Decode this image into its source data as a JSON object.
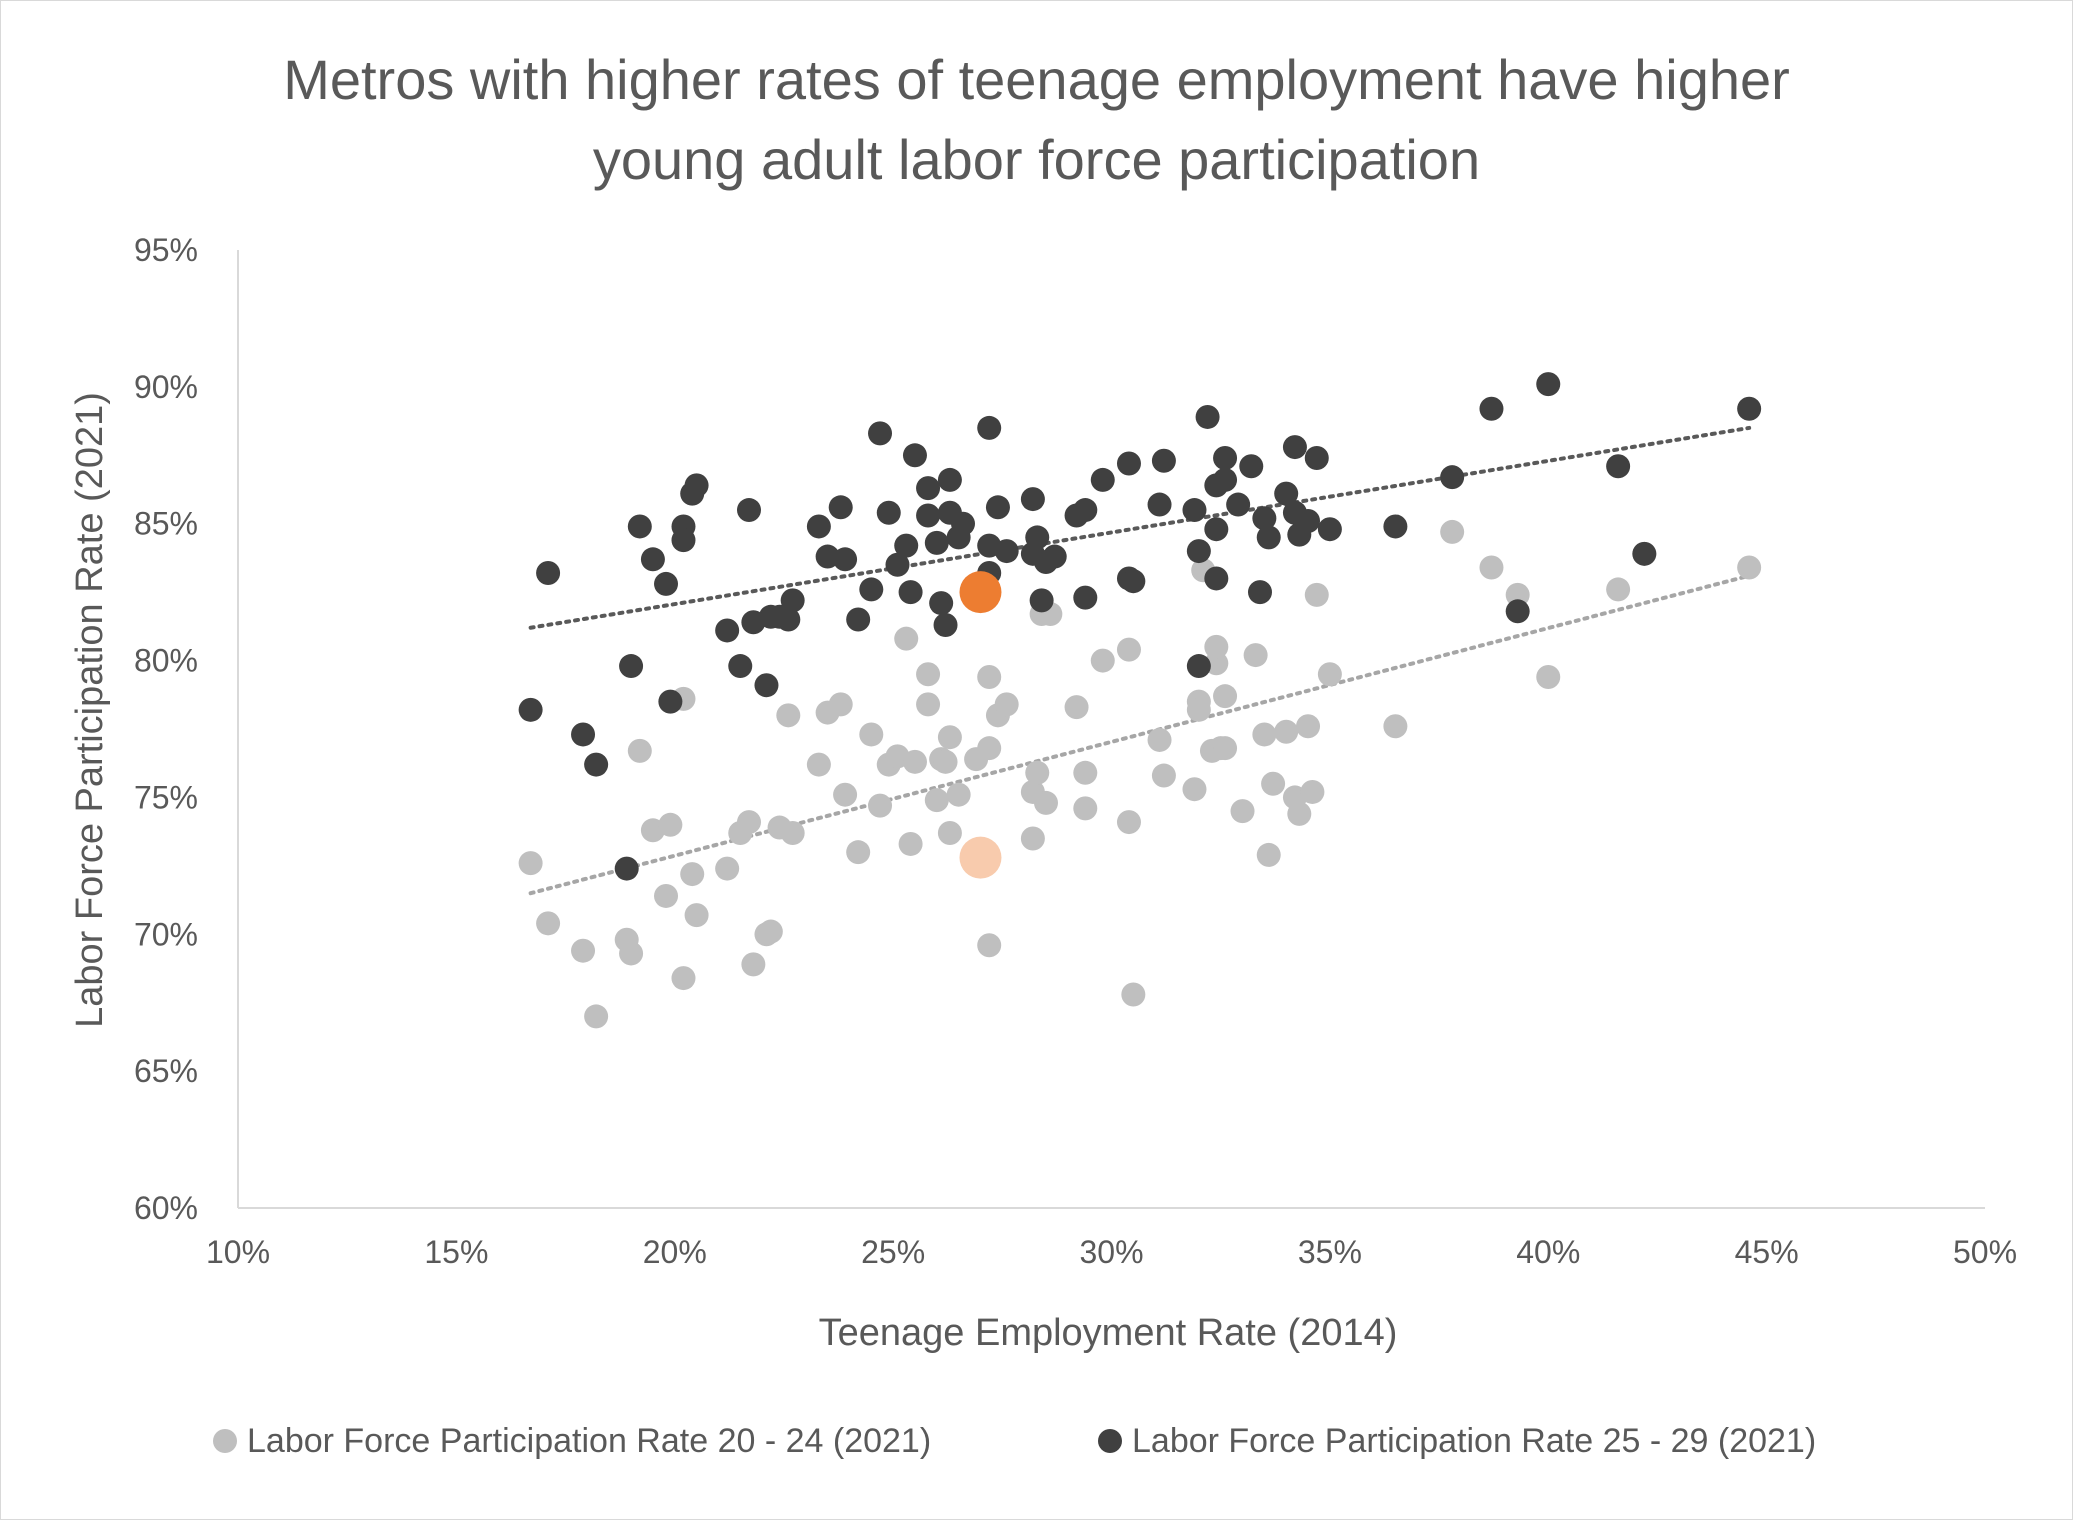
{
  "chart_data": {
    "type": "scatter",
    "title_line1": "Metros with higher rates of teenage employment have higher",
    "title_line2": "young adult labor force participation",
    "xlabel": "Teenage Employment Rate (2014)",
    "ylabel": "Labor Force Participation Rate (2021)",
    "xlim": [
      10,
      50
    ],
    "ylim": [
      60,
      95
    ],
    "x_ticks": [
      "10%",
      "15%",
      "20%",
      "25%",
      "30%",
      "35%",
      "40%",
      "45%",
      "50%"
    ],
    "y_ticks": [
      "60%",
      "65%",
      "70%",
      "75%",
      "80%",
      "85%",
      "90%",
      "95%"
    ],
    "grid": false,
    "legend_position": "bottom",
    "trendlines": true,
    "series": [
      {
        "name": "Labor Force Participation Rate 20 - 24 (2021)",
        "color": "#bfbfbf",
        "trend": [
          [
            16.7,
            71.5
          ],
          [
            44.6,
            83.1
          ]
        ],
        "highlight": {
          "x": 27.0,
          "y": 72.8,
          "color": "#f8cbad"
        },
        "points": [
          [
            16.7,
            72.6
          ],
          [
            17.1,
            70.4
          ],
          [
            17.9,
            69.4
          ],
          [
            18.2,
            67.0
          ],
          [
            18.9,
            69.8
          ],
          [
            19.0,
            69.3
          ],
          [
            19.2,
            76.7
          ],
          [
            19.5,
            73.8
          ],
          [
            19.8,
            71.4
          ],
          [
            19.9,
            74.0
          ],
          [
            20.2,
            68.4
          ],
          [
            20.2,
            78.6
          ],
          [
            20.4,
            72.2
          ],
          [
            20.5,
            70.7
          ],
          [
            21.2,
            72.4
          ],
          [
            21.5,
            73.7
          ],
          [
            21.7,
            74.1
          ],
          [
            21.8,
            68.9
          ],
          [
            22.1,
            70.0
          ],
          [
            22.2,
            70.1
          ],
          [
            22.4,
            73.9
          ],
          [
            22.6,
            78.0
          ],
          [
            22.7,
            73.7
          ],
          [
            23.3,
            76.2
          ],
          [
            23.5,
            78.1
          ],
          [
            23.8,
            78.4
          ],
          [
            23.9,
            75.1
          ],
          [
            24.2,
            73.0
          ],
          [
            24.5,
            77.3
          ],
          [
            24.7,
            74.7
          ],
          [
            24.9,
            76.2
          ],
          [
            25.1,
            76.5
          ],
          [
            25.3,
            80.8
          ],
          [
            25.4,
            73.3
          ],
          [
            25.5,
            76.3
          ],
          [
            25.8,
            79.5
          ],
          [
            25.8,
            78.4
          ],
          [
            26.0,
            74.9
          ],
          [
            26.1,
            76.4
          ],
          [
            26.2,
            76.3
          ],
          [
            26.3,
            77.2
          ],
          [
            26.3,
            73.7
          ],
          [
            26.5,
            75.1
          ],
          [
            26.9,
            76.4
          ],
          [
            27.2,
            79.4
          ],
          [
            27.2,
            76.8
          ],
          [
            27.4,
            78.0
          ],
          [
            27.6,
            78.4
          ],
          [
            27.2,
            69.6
          ],
          [
            28.2,
            75.2
          ],
          [
            28.3,
            75.9
          ],
          [
            28.5,
            74.8
          ],
          [
            28.2,
            73.5
          ],
          [
            28.4,
            81.7
          ],
          [
            28.6,
            81.7
          ],
          [
            29.2,
            78.3
          ],
          [
            29.4,
            75.9
          ],
          [
            29.4,
            74.6
          ],
          [
            29.8,
            80.0
          ],
          [
            30.4,
            80.4
          ],
          [
            30.4,
            74.1
          ],
          [
            30.5,
            67.8
          ],
          [
            31.1,
            77.1
          ],
          [
            31.2,
            75.8
          ],
          [
            31.9,
            75.3
          ],
          [
            32.0,
            78.5
          ],
          [
            32.0,
            78.2
          ],
          [
            32.1,
            83.3
          ],
          [
            32.3,
            76.7
          ],
          [
            32.4,
            79.9
          ],
          [
            32.4,
            80.5
          ],
          [
            32.5,
            76.8
          ],
          [
            32.6,
            78.7
          ],
          [
            32.6,
            76.8
          ],
          [
            33.0,
            74.5
          ],
          [
            33.3,
            80.2
          ],
          [
            33.5,
            77.3
          ],
          [
            33.6,
            72.9
          ],
          [
            33.7,
            75.5
          ],
          [
            34.0,
            77.4
          ],
          [
            34.2,
            75.0
          ],
          [
            34.3,
            74.4
          ],
          [
            34.5,
            77.6
          ],
          [
            34.6,
            75.2
          ],
          [
            34.7,
            82.4
          ],
          [
            35.0,
            79.5
          ],
          [
            36.5,
            77.6
          ],
          [
            37.8,
            84.7
          ],
          [
            38.7,
            83.4
          ],
          [
            39.3,
            82.4
          ],
          [
            40.0,
            79.4
          ],
          [
            41.6,
            82.6
          ],
          [
            42.2,
            83.9
          ],
          [
            44.6,
            83.4
          ]
        ]
      },
      {
        "name": "Labor Force Participation Rate 25 - 29 (2021)",
        "color": "#404040",
        "trend": [
          [
            16.7,
            81.2
          ],
          [
            44.6,
            88.5
          ]
        ],
        "highlight": {
          "x": 27.0,
          "y": 82.5,
          "color": "#ed7d31"
        },
        "points": [
          [
            16.7,
            78.2
          ],
          [
            17.1,
            83.2
          ],
          [
            17.9,
            77.3
          ],
          [
            18.2,
            76.2
          ],
          [
            18.9,
            72.4
          ],
          [
            19.0,
            79.8
          ],
          [
            19.2,
            84.9
          ],
          [
            19.5,
            83.7
          ],
          [
            19.8,
            82.8
          ],
          [
            19.9,
            78.5
          ],
          [
            20.2,
            84.9
          ],
          [
            20.2,
            84.4
          ],
          [
            20.4,
            86.1
          ],
          [
            20.5,
            86.4
          ],
          [
            21.2,
            81.1
          ],
          [
            21.5,
            79.8
          ],
          [
            21.7,
            85.5
          ],
          [
            21.8,
            81.4
          ],
          [
            22.1,
            79.1
          ],
          [
            22.2,
            81.6
          ],
          [
            22.4,
            81.6
          ],
          [
            22.6,
            81.5
          ],
          [
            22.7,
            82.2
          ],
          [
            23.3,
            84.9
          ],
          [
            23.5,
            83.8
          ],
          [
            23.8,
            85.6
          ],
          [
            23.9,
            83.7
          ],
          [
            24.2,
            81.5
          ],
          [
            24.5,
            82.6
          ],
          [
            24.7,
            88.3
          ],
          [
            24.9,
            85.4
          ],
          [
            25.1,
            83.5
          ],
          [
            25.3,
            84.2
          ],
          [
            25.4,
            82.5
          ],
          [
            25.5,
            87.5
          ],
          [
            25.8,
            86.3
          ],
          [
            25.8,
            85.3
          ],
          [
            26.0,
            84.3
          ],
          [
            26.1,
            82.1
          ],
          [
            26.2,
            81.3
          ],
          [
            26.3,
            86.6
          ],
          [
            26.3,
            85.4
          ],
          [
            26.5,
            84.5
          ],
          [
            26.6,
            85.0
          ],
          [
            27.2,
            88.5
          ],
          [
            27.2,
            84.2
          ],
          [
            27.2,
            83.2
          ],
          [
            27.4,
            85.6
          ],
          [
            27.6,
            84.0
          ],
          [
            28.2,
            85.9
          ],
          [
            28.2,
            83.9
          ],
          [
            28.3,
            84.5
          ],
          [
            28.4,
            82.2
          ],
          [
            28.5,
            83.6
          ],
          [
            28.7,
            83.8
          ],
          [
            29.2,
            85.3
          ],
          [
            29.4,
            85.5
          ],
          [
            29.4,
            82.3
          ],
          [
            29.8,
            86.6
          ],
          [
            30.4,
            87.2
          ],
          [
            30.4,
            83.0
          ],
          [
            30.5,
            82.9
          ],
          [
            31.1,
            85.7
          ],
          [
            31.2,
            87.3
          ],
          [
            31.9,
            85.5
          ],
          [
            32.0,
            84.0
          ],
          [
            32.0,
            79.8
          ],
          [
            32.2,
            88.9
          ],
          [
            32.4,
            86.4
          ],
          [
            32.4,
            84.8
          ],
          [
            32.4,
            83.0
          ],
          [
            32.6,
            87.4
          ],
          [
            32.6,
            86.6
          ],
          [
            32.9,
            85.7
          ],
          [
            33.2,
            87.1
          ],
          [
            33.4,
            82.5
          ],
          [
            33.5,
            85.2
          ],
          [
            33.6,
            84.5
          ],
          [
            34.0,
            86.1
          ],
          [
            34.2,
            87.8
          ],
          [
            34.2,
            85.4
          ],
          [
            34.3,
            84.6
          ],
          [
            34.5,
            85.1
          ],
          [
            34.7,
            87.4
          ],
          [
            35.0,
            84.8
          ],
          [
            36.5,
            84.9
          ],
          [
            37.8,
            86.7
          ],
          [
            38.7,
            89.2
          ],
          [
            39.3,
            81.8
          ],
          [
            40.0,
            90.1
          ],
          [
            41.6,
            87.1
          ],
          [
            42.2,
            83.9
          ],
          [
            44.6,
            89.2
          ]
        ]
      }
    ]
  }
}
